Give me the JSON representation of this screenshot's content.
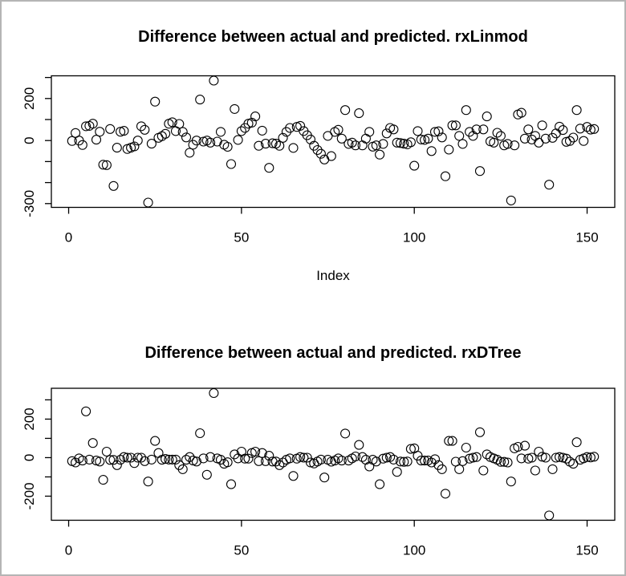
{
  "page": {
    "background": "#ffffff",
    "border_color": "#b5b5b5",
    "text_color": "#000000",
    "marker_color": "#000000"
  },
  "charts": [
    {
      "title": "Difference between actual and predicted. rxLinmod",
      "x_axis_label": "Index"
    },
    {
      "title": "Difference between actual and predicted. rxDTree",
      "x_axis_label": ""
    }
  ],
  "chart_data": [
    {
      "type": "scatter",
      "title": "Difference between actual and predicted. rxLinmod",
      "xlabel": "Index",
      "ylabel": "",
      "marker": "open-circle",
      "x_rule": "sequential index 1..152",
      "n": 152,
      "xlim": [
        -5,
        158
      ],
      "ylim": [
        -318,
        308
      ],
      "x_ticks": [
        0,
        50,
        100,
        150
      ],
      "x_tick_labels": [
        "0",
        "50",
        "100",
        "150"
      ],
      "y_ticks": [
        300,
        200,
        100,
        0,
        -100,
        -200,
        -300
      ],
      "y_tick_labels": [
        "",
        "200",
        "",
        "0",
        "",
        "",
        "-300"
      ],
      "grid": false,
      "legend": "none",
      "values": [
        -2,
        36,
        0,
        -21,
        68,
        70,
        80,
        4,
        42,
        -115,
        -117,
        55,
        -216,
        -34,
        42,
        46,
        -40,
        -34,
        -28,
        0,
        68,
        51,
        -295,
        -15,
        185,
        13,
        21,
        32,
        80,
        87,
        45,
        79,
        41,
        15,
        -58,
        -20,
        0,
        195,
        -5,
        0,
        -10,
        285,
        -5,
        41,
        -20,
        -30,
        -112,
        150,
        3,
        45,
        60,
        80,
        85,
        115,
        -25,
        47,
        -15,
        -130,
        -13,
        -15,
        -25,
        13,
        41,
        60,
        -35,
        65,
        70,
        45,
        25,
        5,
        -25,
        -45,
        -63,
        -90,
        22,
        -74,
        41,
        51,
        9,
        145,
        -16,
        -10,
        -23,
        130,
        -23,
        9,
        41,
        -29,
        -23,
        -67,
        -16,
        34,
        60,
        53,
        -10,
        -12,
        -15,
        -18,
        -8,
        -120,
        45,
        5,
        3,
        9,
        -50,
        41,
        44,
        15,
        -170,
        -43,
        72,
        72,
        22,
        -16,
        145,
        41,
        22,
        53,
        -145,
        53,
        115,
        -4,
        -10,
        37,
        22,
        -23,
        -16,
        -285,
        -23,
        124,
        132,
        9,
        53,
        5,
        22,
        -10,
        72,
        9,
        -210,
        13,
        34,
        66,
        50,
        -6,
        -2,
        14,
        145,
        57,
        -2,
        65,
        52,
        55
      ]
    },
    {
      "type": "scatter",
      "title": "Difference between actual and predicted. rxDTree",
      "xlabel": "",
      "ylabel": "",
      "marker": "open-circle",
      "x_rule": "sequential index 1..152",
      "n": 152,
      "xlim": [
        -5,
        158
      ],
      "ylim": [
        -325,
        360
      ],
      "x_ticks": [
        0,
        50,
        100,
        150
      ],
      "x_tick_labels": [
        "0",
        "50",
        "100",
        "150"
      ],
      "y_ticks": [
        300,
        200,
        100,
        0,
        -100,
        -200
      ],
      "y_tick_labels": [
        "",
        "200",
        "",
        "0",
        "",
        "-200"
      ],
      "grid": false,
      "legend": "none",
      "values": [
        -18,
        -25,
        -4,
        -15,
        240,
        -10,
        76,
        -15,
        -20,
        -115,
        31,
        -12,
        -12,
        -39,
        -11,
        3,
        0,
        0,
        -28,
        0,
        0,
        -18,
        -124,
        -10,
        87,
        24,
        -11,
        -7,
        -10,
        -10,
        -10,
        -39,
        -60,
        -11,
        3,
        -15,
        -20,
        127,
        -4,
        -89,
        3,
        335,
        -4,
        -11,
        -32,
        -24,
        -138,
        17,
        -4,
        31,
        -5,
        -5,
        24,
        31,
        -18,
        24,
        -18,
        10,
        -20,
        -20,
        -39,
        -25,
        -11,
        -4,
        -95,
        -5,
        3,
        0,
        0,
        -25,
        -30,
        -20,
        -10,
        -103,
        -11,
        -21,
        -15,
        -4,
        -15,
        125,
        -15,
        -4,
        6,
        66,
        3,
        -11,
        -46,
        -11,
        -20,
        -138,
        -5,
        0,
        3,
        -10,
        -74,
        -20,
        -22,
        -20,
        45,
        48,
        10,
        -15,
        -15,
        -15,
        -25,
        -8,
        -39,
        -60,
        -187,
        87,
        87,
        -21,
        -60,
        -18,
        52,
        -5,
        0,
        3,
        132,
        -67,
        17,
        3,
        -4,
        -11,
        -22,
        -22,
        -25,
        -124,
        48,
        56,
        -4,
        62,
        -5,
        0,
        -67,
        31,
        5,
        0,
        -300,
        -60,
        0,
        3,
        0,
        -5,
        -21,
        -32,
        80,
        -11,
        -4,
        3,
        1,
        5
      ]
    }
  ]
}
